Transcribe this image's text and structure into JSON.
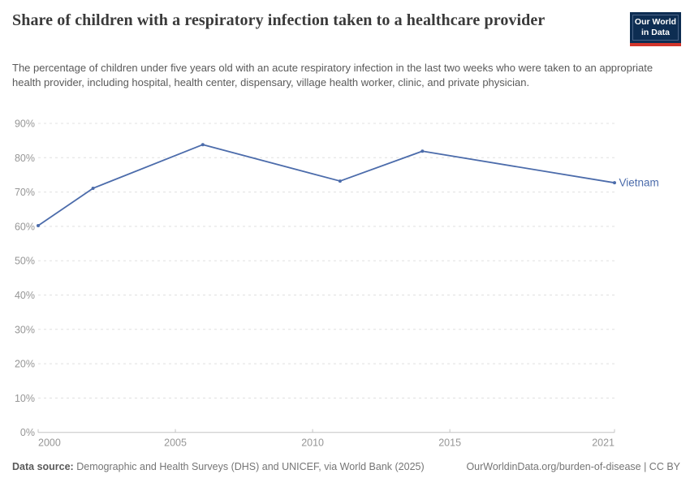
{
  "header": {
    "title": "Share of children with a respiratory infection taken to a healthcare provider",
    "subtitle": "The percentage of children under five years old with an acute respiratory infection in the last two weeks who were taken to an appropriate health provider, including hospital, health center, dispensary, village health worker, clinic, and private physician.",
    "logo_line1": "Our World",
    "logo_line2": "in Data"
  },
  "chart_data": {
    "type": "line",
    "title": "Share of children with a respiratory infection taken to a healthcare provider",
    "x": [
      2000,
      2002,
      2006,
      2011,
      2014,
      2021
    ],
    "series": [
      {
        "name": "Vietnam",
        "color": "#4c6cab",
        "values": [
          60.2,
          71.1,
          83.8,
          73.2,
          81.9,
          72.7
        ]
      }
    ],
    "x_axis": {
      "min": 2000,
      "max": 2021,
      "ticks": [
        2000,
        2005,
        2010,
        2015,
        2021
      ]
    },
    "y_axis": {
      "min": 0,
      "max": 90,
      "ticks": [
        0,
        10,
        20,
        30,
        40,
        50,
        60,
        70,
        80,
        90
      ],
      "format": "percent"
    },
    "grid": "horizontal-dashed",
    "legend_position": "line-end-label"
  },
  "footer": {
    "datasource_label": "Data source:",
    "datasource_text": "Demographic and Health Surveys (DHS) and UNICEF, via World Bank (2025)",
    "right_text": "OurWorldinData.org/burden-of-disease | CC BY"
  },
  "colors": {
    "line": "#4c6cab",
    "grid": "#e0e0e0",
    "axis": "#c4c4c4",
    "tick_label": "#969696",
    "logo_bg": "#0d2d52",
    "logo_red": "#d2352b"
  }
}
